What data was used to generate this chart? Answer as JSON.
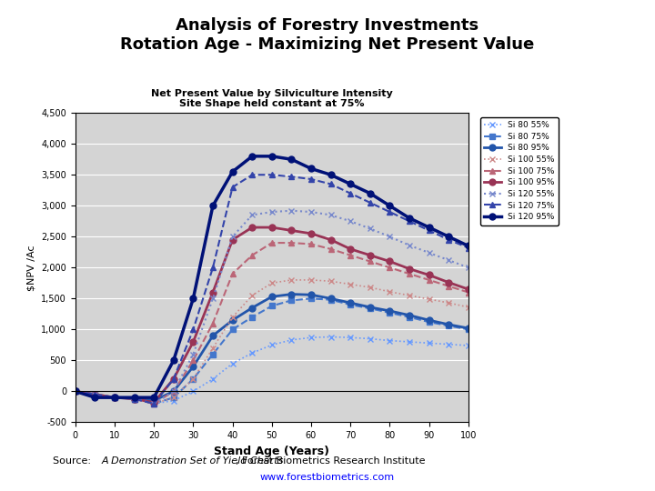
{
  "title": "Analysis of Forestry Investments\nRotation Age - Maximizing Net Present Value",
  "chart_title": "Net Present Value by Silviculture Intensity\nSite Shape held constant at 75%",
  "xlabel": "Stand Age (Years)",
  "ylabel": "$NPV /Ac",
  "source_text": "Source: ",
  "source_italic": "A Demonstration Set of Yield Charts",
  "source_rest": ", Forest Biometrics Research Institute",
  "source_url": "www.forestbiometrics.com",
  "x": [
    0,
    5,
    10,
    15,
    20,
    25,
    30,
    35,
    40,
    45,
    50,
    55,
    60,
    65,
    70,
    75,
    80,
    85,
    90,
    95,
    100
  ],
  "series": [
    {
      "label": "Si 80 55%",
      "color": "#6699FF",
      "linestyle": "dotted",
      "marker": "x",
      "linewidth": 1.2,
      "markersize": 4,
      "values": [
        0,
        -50,
        -100,
        -120,
        -200,
        -150,
        0,
        200,
        450,
        620,
        750,
        830,
        870,
        880,
        870,
        850,
        820,
        800,
        780,
        760,
        740
      ]
    },
    {
      "label": "Si 80 75%",
      "color": "#4477CC",
      "linestyle": "dashed",
      "marker": "s",
      "linewidth": 1.5,
      "markersize": 4,
      "values": [
        0,
        -50,
        -100,
        -120,
        -200,
        -100,
        200,
        600,
        1000,
        1200,
        1380,
        1470,
        1500,
        1480,
        1400,
        1340,
        1270,
        1200,
        1120,
        1060,
        1000
      ]
    },
    {
      "label": "Si 80 95%",
      "color": "#2255AA",
      "linestyle": "solid",
      "marker": "o",
      "linewidth": 2,
      "markersize": 5,
      "values": [
        0,
        -50,
        -100,
        -120,
        -150,
        0,
        400,
        900,
        1150,
        1350,
        1530,
        1570,
        1560,
        1500,
        1430,
        1360,
        1300,
        1230,
        1150,
        1080,
        1020
      ]
    },
    {
      "label": "Si 100 55%",
      "color": "#CC8888",
      "linestyle": "dotted",
      "marker": "x",
      "linewidth": 1.2,
      "markersize": 4,
      "values": [
        0,
        -50,
        -100,
        -120,
        -200,
        -100,
        200,
        700,
        1200,
        1550,
        1750,
        1800,
        1800,
        1780,
        1730,
        1680,
        1610,
        1550,
        1490,
        1430,
        1360
      ]
    },
    {
      "label": "Si 100 75%",
      "color": "#BB6677",
      "linestyle": "dashed",
      "marker": "^",
      "linewidth": 1.5,
      "markersize": 4,
      "values": [
        0,
        -50,
        -100,
        -120,
        -200,
        0,
        500,
        1100,
        1900,
        2200,
        2400,
        2400,
        2380,
        2300,
        2200,
        2100,
        2000,
        1900,
        1800,
        1700,
        1600
      ]
    },
    {
      "label": "Si 100 95%",
      "color": "#993355",
      "linestyle": "solid",
      "marker": "o",
      "linewidth": 2,
      "markersize": 5,
      "values": [
        0,
        -50,
        -100,
        -120,
        -180,
        200,
        800,
        1600,
        2450,
        2650,
        2650,
        2600,
        2550,
        2450,
        2300,
        2200,
        2100,
        1980,
        1880,
        1760,
        1650
      ]
    },
    {
      "label": "Si 120 55%",
      "color": "#7788CC",
      "linestyle": "dotted",
      "marker": "x",
      "linewidth": 1.5,
      "markersize": 4,
      "values": [
        0,
        -50,
        -100,
        -120,
        -200,
        0,
        600,
        1500,
        2500,
        2850,
        2900,
        2920,
        2900,
        2850,
        2750,
        2630,
        2500,
        2360,
        2240,
        2120,
        2000
      ]
    },
    {
      "label": "Si 120 75%",
      "color": "#3344AA",
      "linestyle": "dashed",
      "marker": "^",
      "linewidth": 1.5,
      "markersize": 4,
      "values": [
        0,
        -50,
        -100,
        -120,
        -200,
        200,
        1000,
        2000,
        3300,
        3500,
        3500,
        3470,
        3430,
        3350,
        3200,
        3050,
        2900,
        2750,
        2600,
        2450,
        2320
      ]
    },
    {
      "label": "Si 120 95%",
      "color": "#001177",
      "linestyle": "solid",
      "marker": "o",
      "linewidth": 2.5,
      "markersize": 5,
      "values": [
        0,
        -100,
        -100,
        -100,
        -100,
        500,
        1500,
        3000,
        3550,
        3800,
        3800,
        3750,
        3600,
        3500,
        3350,
        3200,
        3000,
        2800,
        2650,
        2500,
        2350
      ]
    }
  ],
  "ylim": [
    -500,
    4500
  ],
  "xlim": [
    0,
    100
  ],
  "yticks": [
    -500,
    0,
    500,
    1000,
    1500,
    2000,
    2500,
    3000,
    3500,
    4000,
    4500
  ],
  "xticks": [
    0,
    10,
    20,
    30,
    40,
    50,
    60,
    70,
    80,
    90,
    100
  ],
  "yticklabels": [
    "-500",
    "0",
    "500",
    "1,000",
    "1,500",
    "2,000",
    "2,500",
    "3,000",
    "3,500",
    "4,000",
    "4,500"
  ],
  "plot_bg_color": "#D4D4D4",
  "outer_bg_color": "#FFFFFF"
}
